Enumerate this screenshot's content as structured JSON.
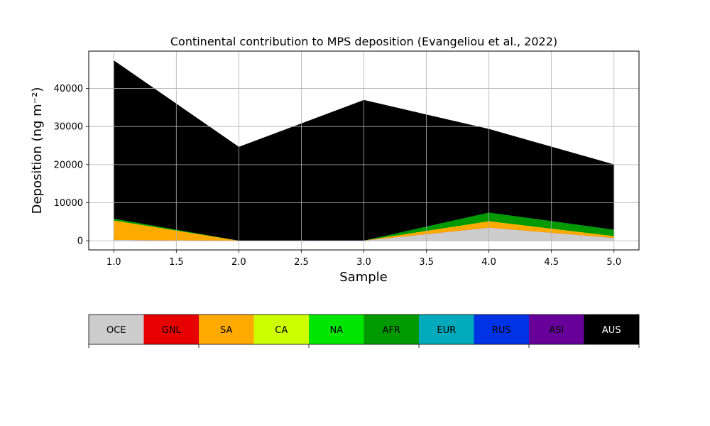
{
  "chart_data": {
    "type": "area",
    "stacked": true,
    "title": "Continental contribution to MPS deposition (Evangeliou et al., 2022)",
    "xlabel": "Sample",
    "ylabel": "Deposition (ng m⁻²)",
    "x": [
      1,
      2,
      3,
      4,
      5
    ],
    "xlim": [
      0.8,
      5.2
    ],
    "ylim": [
      -2400,
      49800
    ],
    "xticks": [
      "1.0",
      "1.5",
      "2.0",
      "2.5",
      "3.0",
      "3.5",
      "4.0",
      "4.5",
      "5.0"
    ],
    "yticks": [
      "0",
      "10000",
      "20000",
      "30000",
      "40000"
    ],
    "grid": true,
    "series": [
      {
        "name": "OCE",
        "color": "#cccccc",
        "values": [
          300,
          80,
          100,
          3500,
          800
        ]
      },
      {
        "name": "GNL",
        "color": "#e60000",
        "values": [
          0,
          0,
          0,
          0,
          0
        ]
      },
      {
        "name": "SA",
        "color": "#ffaa00",
        "values": [
          5100,
          20,
          20,
          1700,
          500
        ]
      },
      {
        "name": "CA",
        "color": "#ccff00",
        "values": [
          0,
          0,
          0,
          0,
          0
        ]
      },
      {
        "name": "NA",
        "color": "#00e600",
        "values": [
          0,
          0,
          0,
          0,
          0
        ]
      },
      {
        "name": "AFR",
        "color": "#009900",
        "values": [
          500,
          0,
          0,
          2300,
          1700
        ]
      },
      {
        "name": "EUR",
        "color": "#00aabb",
        "values": [
          0,
          0,
          0,
          0,
          0
        ]
      },
      {
        "name": "RUS",
        "color": "#0033e6",
        "values": [
          0,
          0,
          0,
          0,
          0
        ]
      },
      {
        "name": "ASI",
        "color": "#660099",
        "values": [
          0,
          0,
          0,
          0,
          0
        ]
      },
      {
        "name": "AUS",
        "color": "#000000",
        "values": [
          41400,
          24500,
          36800,
          21800,
          17000
        ]
      }
    ],
    "legend_placement": "bottom colorbar"
  }
}
